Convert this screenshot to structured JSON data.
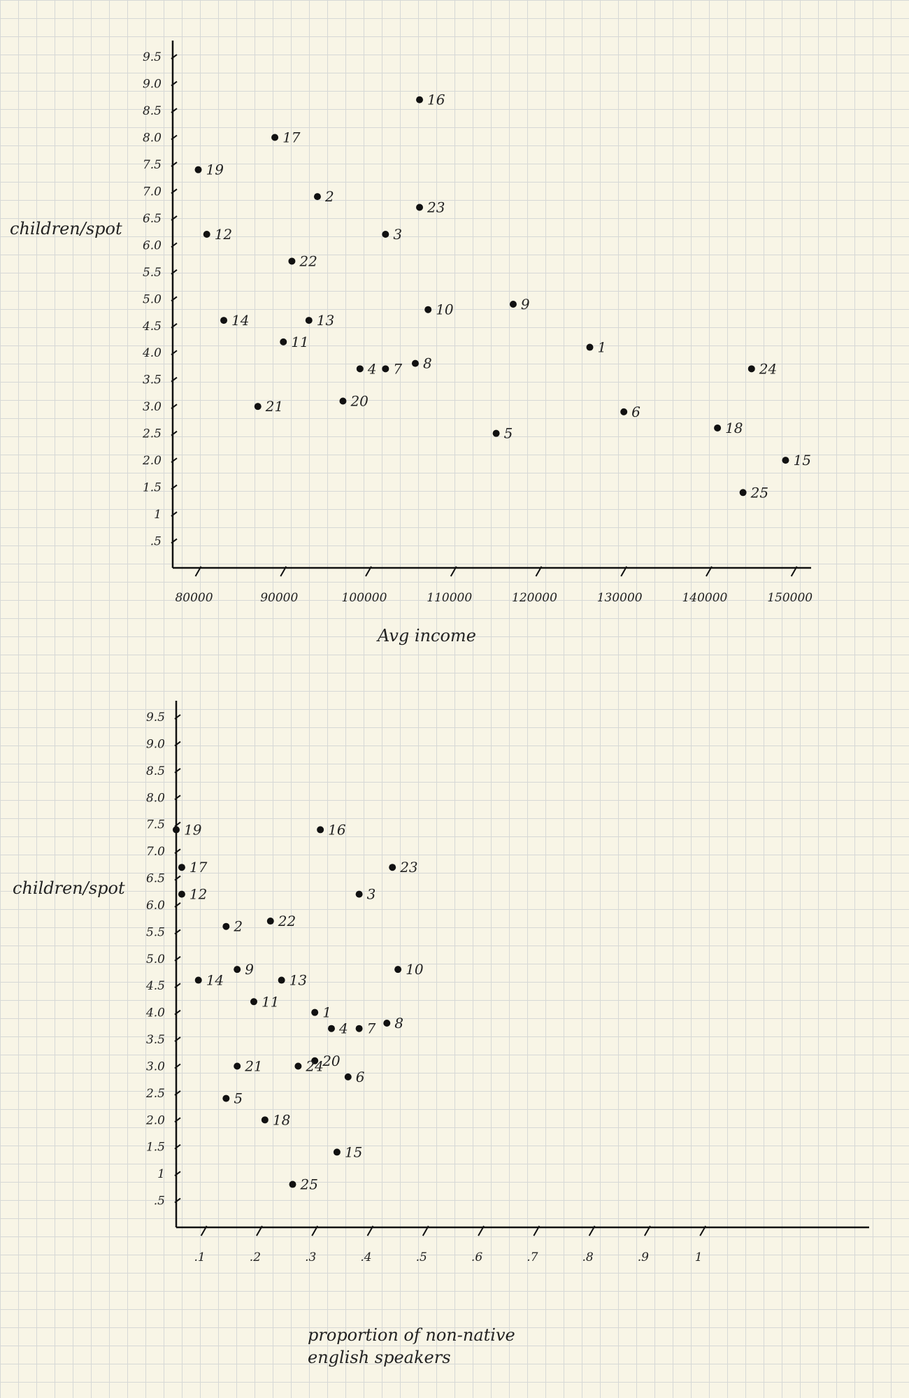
{
  "chart_data": [
    {
      "type": "scatter",
      "xlabel": "Avg income",
      "ylabel": "children/spot",
      "xlim": [
        77000,
        152000
      ],
      "ylim": [
        0,
        9.8
      ],
      "x_ticks": [
        80000,
        90000,
        100000,
        110000,
        120000,
        130000,
        140000,
        150000
      ],
      "x_tick_labels": [
        "80000",
        "90000",
        "100000",
        "110000",
        "120000",
        "130000",
        "140000",
        "150000"
      ],
      "y_ticks": [
        0.5,
        1,
        1.5,
        2,
        2.5,
        3,
        3.5,
        4,
        4.5,
        5,
        5.5,
        6,
        6.5,
        7,
        7.5,
        8,
        8.5,
        9,
        9.5
      ],
      "y_tick_labels": [
        ".5",
        "1",
        "1.5",
        "2.0",
        "2.5",
        "3.0",
        "3.5",
        "4.0",
        "4.5",
        "5.0",
        "5.5",
        "6.0",
        "6.5",
        "7.0",
        "7.5",
        "8.0",
        "8.5",
        "9.0",
        "9.5"
      ],
      "points": [
        {
          "label": "1",
          "x": 126000,
          "y": 4.1
        },
        {
          "label": "2",
          "x": 94000,
          "y": 6.9
        },
        {
          "label": "3",
          "x": 102000,
          "y": 6.2
        },
        {
          "label": "4",
          "x": 99000,
          "y": 3.7
        },
        {
          "label": "5",
          "x": 115000,
          "y": 2.5
        },
        {
          "label": "6",
          "x": 130000,
          "y": 2.9
        },
        {
          "label": "7",
          "x": 102000,
          "y": 3.7
        },
        {
          "label": "8",
          "x": 105500,
          "y": 3.8
        },
        {
          "label": "9",
          "x": 117000,
          "y": 4.9
        },
        {
          "label": "10",
          "x": 107000,
          "y": 4.8
        },
        {
          "label": "11",
          "x": 90000,
          "y": 4.2
        },
        {
          "label": "12",
          "x": 81000,
          "y": 6.2
        },
        {
          "label": "13",
          "x": 93000,
          "y": 4.6
        },
        {
          "label": "14",
          "x": 83000,
          "y": 4.6
        },
        {
          "label": "15",
          "x": 149000,
          "y": 2.0
        },
        {
          "label": "16",
          "x": 106000,
          "y": 8.7
        },
        {
          "label": "17",
          "x": 89000,
          "y": 8.0
        },
        {
          "label": "18",
          "x": 141000,
          "y": 2.6
        },
        {
          "label": "19",
          "x": 80000,
          "y": 7.4
        },
        {
          "label": "20",
          "x": 97000,
          "y": 3.1
        },
        {
          "label": "21",
          "x": 87000,
          "y": 3.0
        },
        {
          "label": "22",
          "x": 91000,
          "y": 5.7
        },
        {
          "label": "23",
          "x": 106000,
          "y": 6.7
        },
        {
          "label": "24",
          "x": 145000,
          "y": 3.7
        },
        {
          "label": "25",
          "x": 144000,
          "y": 1.4
        }
      ]
    },
    {
      "type": "scatter",
      "xlabel": "proportion of non-native english speakers",
      "ylabel": "children/spot",
      "xlim": [
        0.05,
        1.3
      ],
      "ylim": [
        0,
        9.8
      ],
      "x_ticks": [
        0.1,
        0.2,
        0.3,
        0.4,
        0.5,
        0.6,
        0.7,
        0.8,
        0.9,
        1.0
      ],
      "x_tick_labels": [
        ".1",
        ".2",
        ".3",
        ".4",
        ".5",
        ".6",
        ".7",
        ".8",
        ".9",
        "1"
      ],
      "y_ticks": [
        0.5,
        1,
        1.5,
        2,
        2.5,
        3,
        3.5,
        4,
        4.5,
        5,
        5.5,
        6,
        6.5,
        7,
        7.5,
        8,
        8.5,
        9,
        9.5
      ],
      "y_tick_labels": [
        ".5",
        "1",
        "1.5",
        "2.0",
        "2.5",
        "3.0",
        "3.5",
        "4.0",
        "4.5",
        "5.0",
        "5.5",
        "6.0",
        "6.5",
        "7.0",
        "7.5",
        "8.0",
        "8.5",
        "9.0",
        "9.5"
      ],
      "points": [
        {
          "label": "1",
          "x": 0.3,
          "y": 4.0
        },
        {
          "label": "2",
          "x": 0.14,
          "y": 5.6
        },
        {
          "label": "3",
          "x": 0.38,
          "y": 6.2
        },
        {
          "label": "4",
          "x": 0.33,
          "y": 3.7
        },
        {
          "label": "5",
          "x": 0.14,
          "y": 2.4
        },
        {
          "label": "6",
          "x": 0.36,
          "y": 2.8
        },
        {
          "label": "7",
          "x": 0.38,
          "y": 3.7
        },
        {
          "label": "8",
          "x": 0.43,
          "y": 3.8
        },
        {
          "label": "9",
          "x": 0.16,
          "y": 4.8
        },
        {
          "label": "10",
          "x": 0.45,
          "y": 4.8
        },
        {
          "label": "11",
          "x": 0.19,
          "y": 4.2
        },
        {
          "label": "12",
          "x": 0.06,
          "y": 6.2
        },
        {
          "label": "13",
          "x": 0.24,
          "y": 4.6
        },
        {
          "label": "14",
          "x": 0.09,
          "y": 4.6
        },
        {
          "label": "15",
          "x": 0.34,
          "y": 1.4
        },
        {
          "label": "16",
          "x": 0.31,
          "y": 7.4
        },
        {
          "label": "17",
          "x": 0.06,
          "y": 6.7
        },
        {
          "label": "18",
          "x": 0.21,
          "y": 2.0
        },
        {
          "label": "19",
          "x": 0.05,
          "y": 7.4
        },
        {
          "label": "20",
          "x": 0.3,
          "y": 3.1
        },
        {
          "label": "21",
          "x": 0.16,
          "y": 3.0
        },
        {
          "label": "22",
          "x": 0.22,
          "y": 5.7
        },
        {
          "label": "23",
          "x": 0.44,
          "y": 6.7
        },
        {
          "label": "24",
          "x": 0.27,
          "y": 3.0
        },
        {
          "label": "25",
          "x": 0.26,
          "y": 0.8
        }
      ]
    }
  ]
}
